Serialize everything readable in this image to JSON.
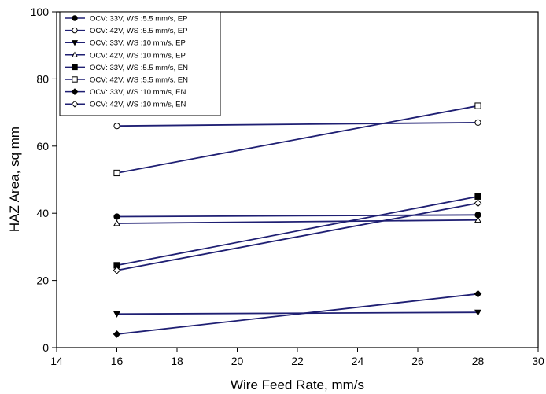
{
  "chart_data": {
    "type": "line",
    "title": "",
    "xlabel": "Wire Feed Rate, mm/s",
    "ylabel": "HAZ Area, sq mm",
    "xlim": [
      14,
      30
    ],
    "ylim": [
      0,
      100
    ],
    "xticks": [
      14,
      16,
      18,
      20,
      22,
      24,
      26,
      28,
      30
    ],
    "yticks": [
      0,
      20,
      40,
      60,
      80,
      100
    ],
    "grid": false,
    "legend_position": "top-left",
    "line_color": "#1f1f73",
    "series": [
      {
        "name": "OCV: 33V, WS :5.5 mm/s, EP",
        "marker": "circle-filled",
        "x": [
          16,
          28
        ],
        "y": [
          39,
          39.5
        ]
      },
      {
        "name": "OCV: 42V, WS :5.5 mm/s, EP",
        "marker": "circle-open",
        "x": [
          16,
          28
        ],
        "y": [
          66,
          67
        ]
      },
      {
        "name": "OCV: 33V, WS :10 mm/s, EP",
        "marker": "triangle-down-filled",
        "x": [
          16,
          28
        ],
        "y": [
          10,
          10.5
        ]
      },
      {
        "name": "OCV: 42V, WS :10 mm/s, EP",
        "marker": "triangle-up-open",
        "x": [
          16,
          28
        ],
        "y": [
          37,
          38
        ]
      },
      {
        "name": "OCV: 33V, WS :5.5 mm/s, EN",
        "marker": "square-filled",
        "x": [
          16,
          28
        ],
        "y": [
          24.5,
          45
        ]
      },
      {
        "name": "OCV: 42V, WS :5.5 mm/s, EN",
        "marker": "square-open",
        "x": [
          16,
          28
        ],
        "y": [
          52,
          72
        ]
      },
      {
        "name": "OCV: 33V, WS :10 mm/s, EN",
        "marker": "diamond-filled",
        "x": [
          16,
          28
        ],
        "y": [
          4,
          16
        ]
      },
      {
        "name": "OCV: 42V, WS :10 mm/s, EN",
        "marker": "diamond-open",
        "x": [
          16,
          28
        ],
        "y": [
          23,
          43
        ]
      }
    ]
  }
}
